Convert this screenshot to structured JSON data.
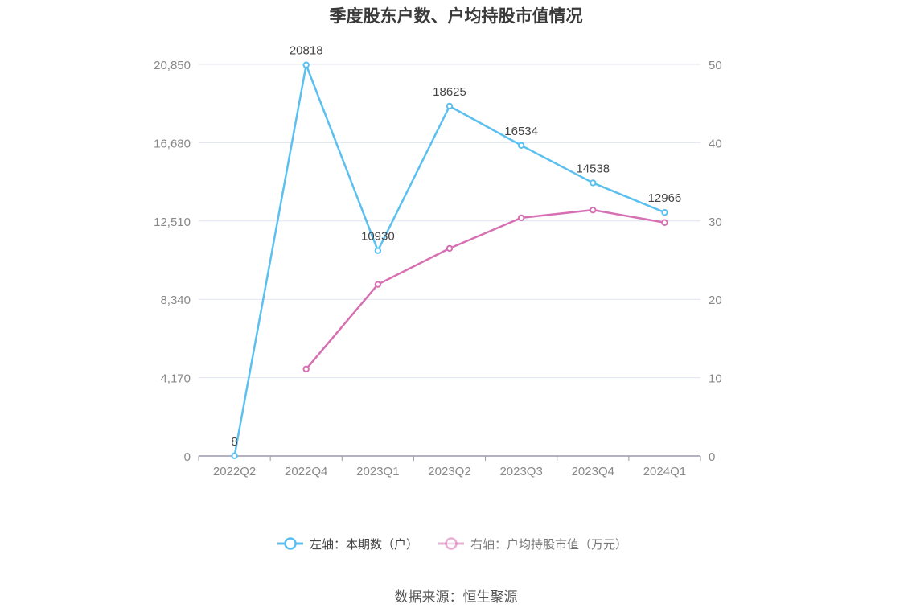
{
  "title": "季度股东户数、户均持股市值情况",
  "source": "数据来源：恒生聚源",
  "chart_data": {
    "type": "line",
    "categories": [
      "2022Q2",
      "2022Q4",
      "2023Q1",
      "2023Q2",
      "2023Q3",
      "2023Q4",
      "2024Q1"
    ],
    "left_axis": {
      "ticks": [
        "0",
        "4,170",
        "8,340",
        "12,510",
        "16,680",
        "20,850"
      ],
      "range": [
        0,
        20850
      ]
    },
    "right_axis": {
      "ticks": [
        "0",
        "10",
        "20",
        "30",
        "40",
        "50"
      ],
      "range": [
        0,
        50
      ]
    },
    "series": [
      {
        "name": "左轴：本期数（户）",
        "axis": "left",
        "color": "#5bc0f0",
        "values": [
          8,
          20818,
          10930,
          18625,
          16534,
          14538,
          12966
        ],
        "labels": [
          "8",
          "20818",
          "10930",
          "18625",
          "16534",
          "14538",
          "12966"
        ]
      },
      {
        "name": "右轴：户均持股市值（万元）",
        "axis": "right",
        "color": "#d670b2",
        "values": [
          null,
          11.1,
          21.9,
          26.5,
          30.4,
          31.4,
          29.8
        ]
      }
    ],
    "legend_position": "bottom",
    "grid": true
  }
}
